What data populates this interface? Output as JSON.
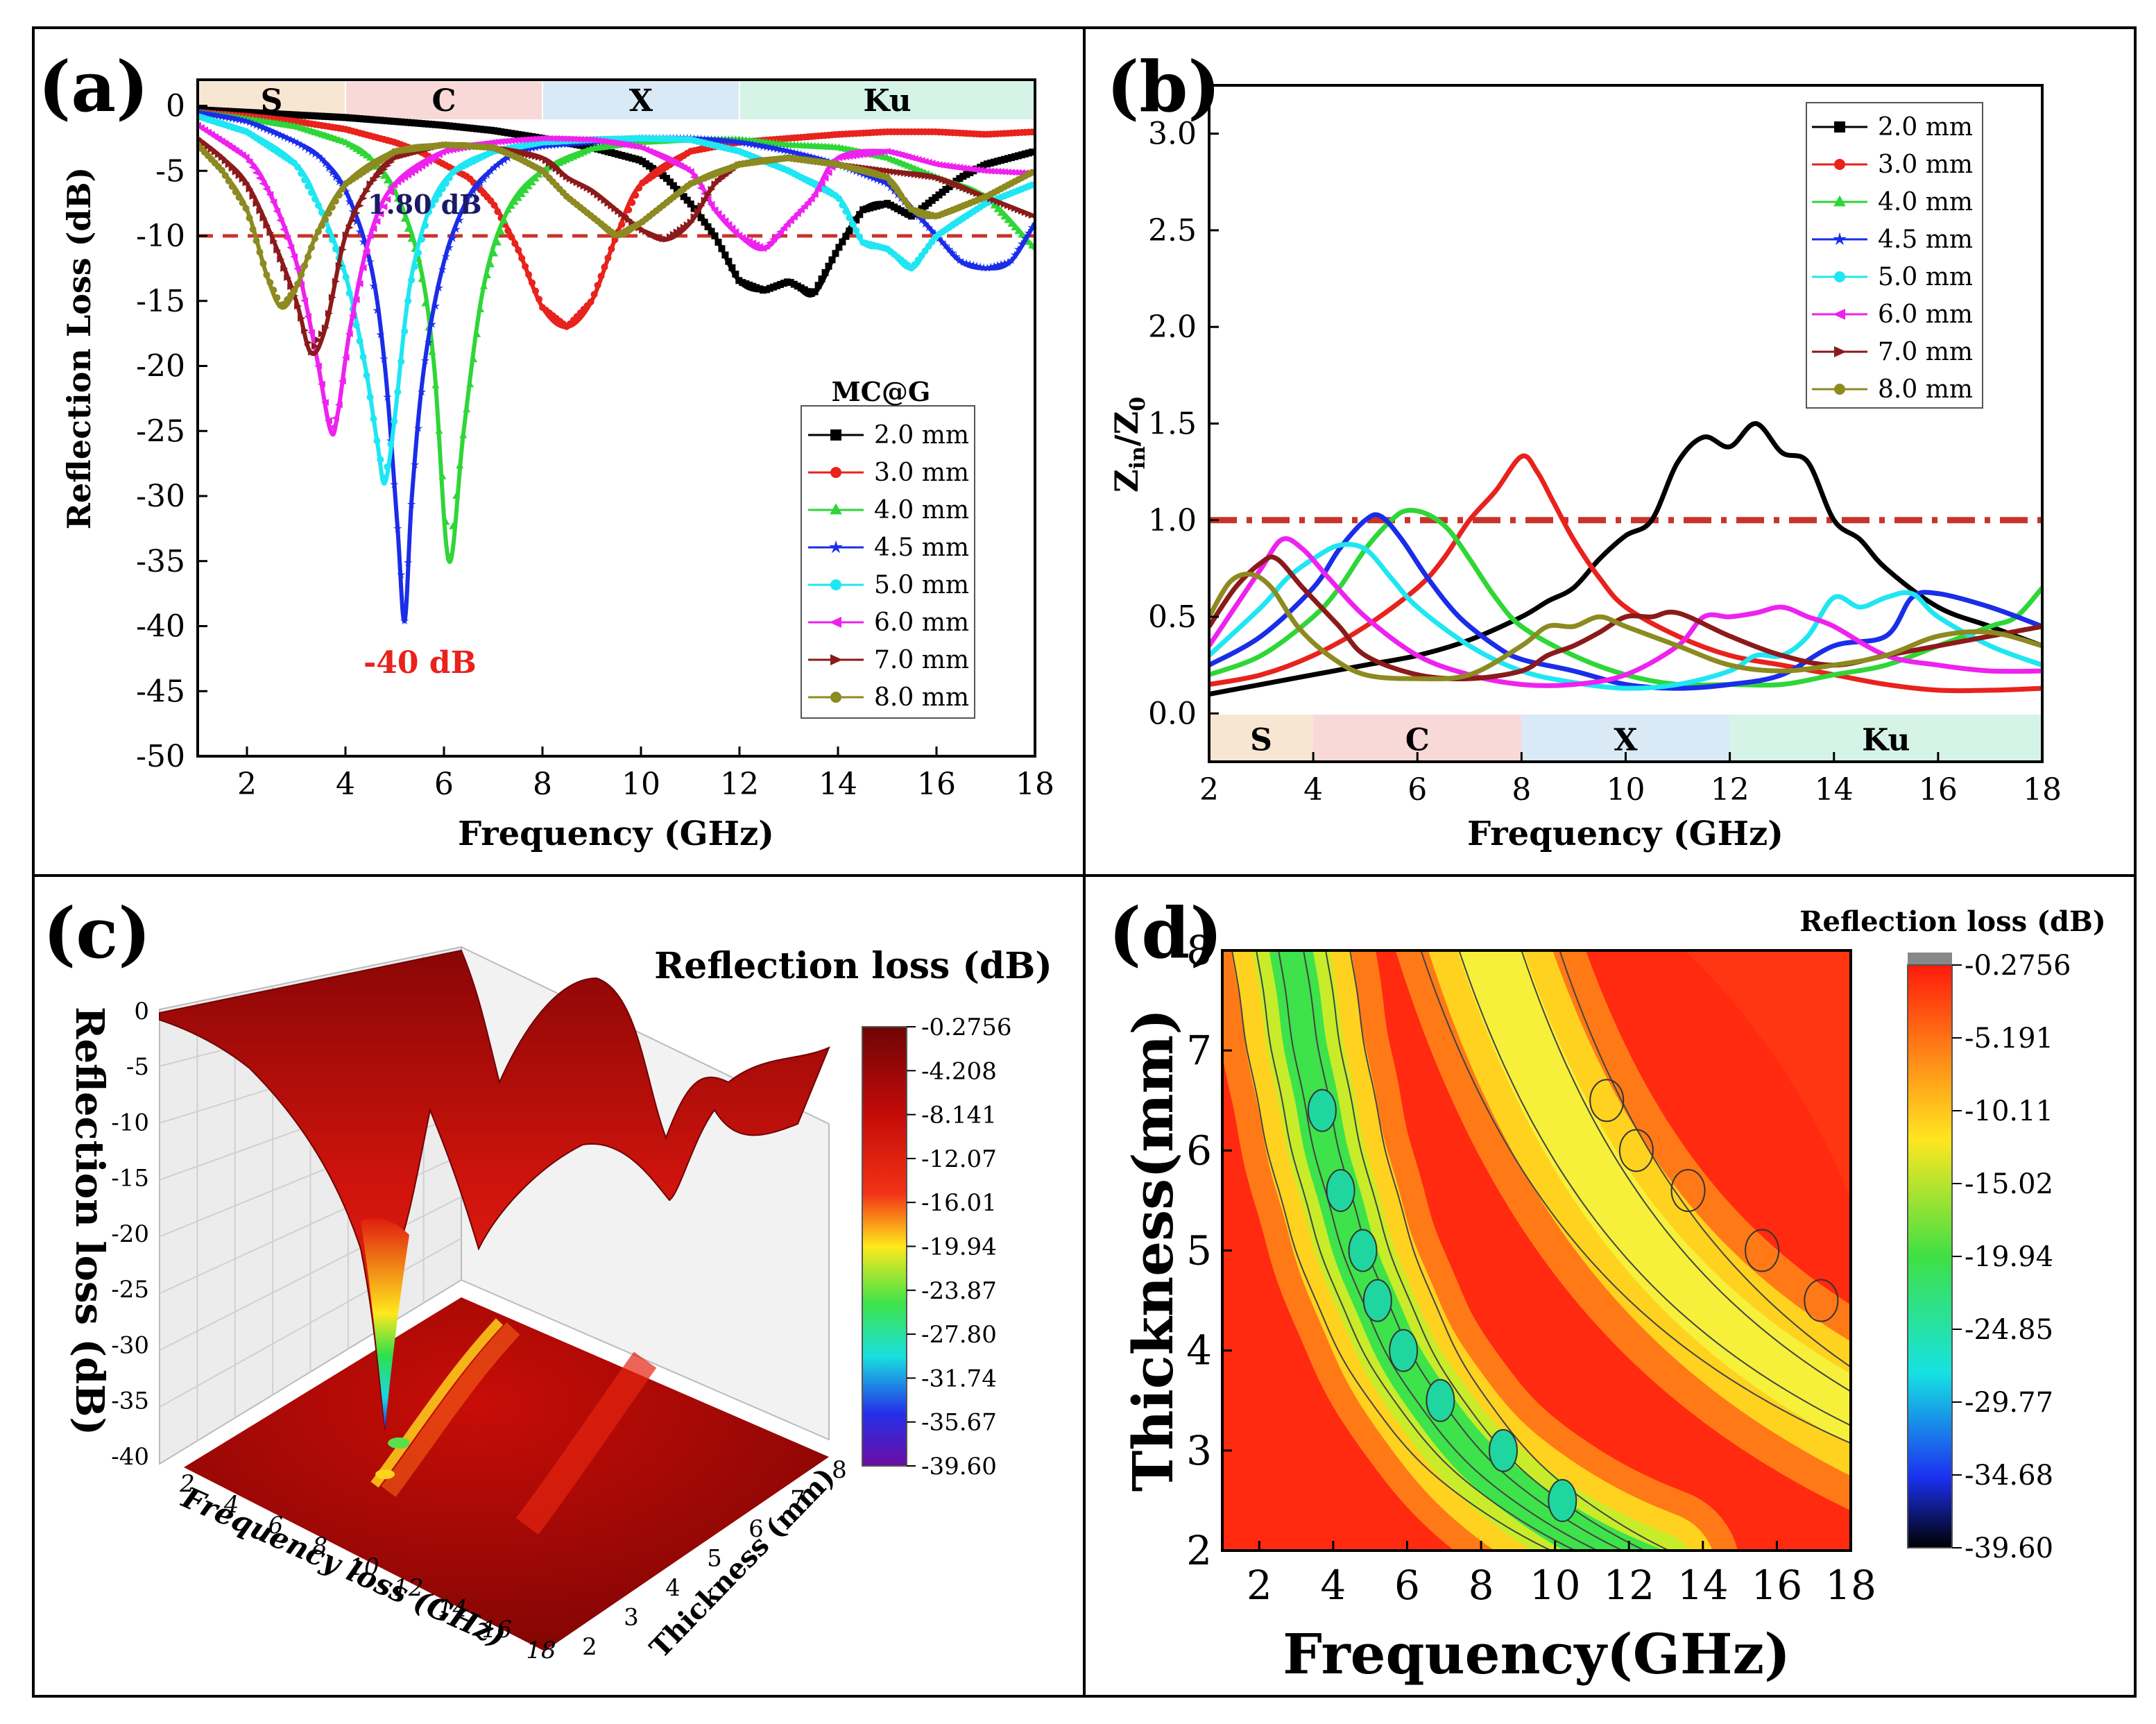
{
  "panels": {
    "a": {
      "letter": "(a)",
      "xlabel": "Frequency (GHz)",
      "ylabel": "Reflection Loss (dB)",
      "annotation_low": "1.80 dB",
      "annotation_min": "-40 dB",
      "legend_title": "MC@G"
    },
    "b": {
      "letter": "(b)",
      "xlabel": "Frequency (GHz)",
      "ylabel_main": "Z",
      "ylabel_sub1": "in",
      "ylabel_slash": "/Z",
      "ylabel_sub2": "0"
    },
    "c": {
      "letter": "(c)",
      "title": "Reflection loss (dB)",
      "zlabel": "Reflection loss (dB)",
      "xlabel": "Frequency loss (GHz)",
      "ylabel": "Thickness (mm)"
    },
    "d": {
      "letter": "(d)",
      "title": "Reflection loss (dB)",
      "xlabel": "Frequency(GHz)",
      "ylabel": "Thickness(mm)"
    }
  },
  "bands": [
    {
      "name": "S",
      "from": 1,
      "to": 4,
      "color": "#f7e5cf"
    },
    {
      "name": "C",
      "from": 4,
      "to": 8,
      "color": "#f9d7d5"
    },
    {
      "name": "X",
      "from": 8,
      "to": 12,
      "color": "#d7e9f6"
    },
    {
      "name": "Ku",
      "from": 12,
      "to": 18,
      "color": "#d3f3e6"
    }
  ],
  "colors": {
    "s20": "#000000",
    "s30": "#e8221c",
    "s40": "#2fd637",
    "s45": "#1a2de8",
    "s50": "#1fe6f2",
    "s60": "#ee22ee",
    "s70": "#8b1a1a",
    "s80": "#8c8a20",
    "reference": "#c8342b"
  },
  "chart_data": [
    {
      "id": "a",
      "type": "line",
      "title": "",
      "xlabel": "Frequency (GHz)",
      "ylabel": "Reflection Loss (dB)",
      "xlim": [
        1,
        18
      ],
      "ylim": [
        -50,
        2
      ],
      "xticks": [
        2,
        4,
        6,
        8,
        10,
        12,
        14,
        16,
        18
      ],
      "yticks": [
        0,
        -5,
        -10,
        -15,
        -20,
        -25,
        -30,
        -35,
        -40,
        -45,
        -50
      ],
      "reference_line": -10,
      "series": [
        {
          "name": "2.0 mm",
          "color": "#000000",
          "x": [
            1,
            2,
            3,
            4,
            5,
            6,
            7,
            8,
            9,
            10,
            10.5,
            11,
            11.5,
            12,
            12.5,
            13,
            13.5,
            14,
            14.5,
            15,
            15.5,
            16,
            16.5,
            17,
            17.5,
            18
          ],
          "y": [
            -0.3,
            -0.5,
            -0.7,
            -0.9,
            -1.2,
            -1.5,
            -1.9,
            -2.5,
            -3.2,
            -4.2,
            -5.5,
            -7.5,
            -10,
            -13.5,
            -14.2,
            -13.5,
            -14.5,
            -11,
            -8,
            -7.5,
            -8.5,
            -7,
            -5.5,
            -4.5,
            -4,
            -3.5
          ]
        },
        {
          "name": "3.0 mm",
          "color": "#e8221c",
          "x": [
            1,
            2,
            3,
            4,
            5,
            5.5,
            6,
            6.5,
            7,
            7.5,
            8,
            8.5,
            9,
            9.5,
            10,
            11,
            12,
            13,
            14,
            15,
            16,
            17,
            18
          ],
          "y": [
            -0.5,
            -0.8,
            -1.2,
            -1.8,
            -2.8,
            -3.5,
            -4.5,
            -5.5,
            -7.5,
            -11,
            -15.5,
            -17,
            -15,
            -10,
            -6,
            -3.5,
            -2.8,
            -2.5,
            -2.2,
            -2,
            -2,
            -2.2,
            -2
          ]
        },
        {
          "name": "4.0 mm",
          "color": "#2fd637",
          "x": [
            1,
            2,
            3,
            4,
            4.5,
            5,
            5.5,
            5.8,
            6.1,
            6.4,
            6.8,
            7.3,
            8,
            9,
            10,
            11,
            12,
            13,
            14,
            15,
            16,
            17,
            18
          ],
          "y": [
            -0.5,
            -1,
            -1.6,
            -2.8,
            -4,
            -6.5,
            -12,
            -20,
            -35,
            -25,
            -14,
            -8,
            -5,
            -3.3,
            -2.8,
            -2.6,
            -2.6,
            -3,
            -3.2,
            -4,
            -5.5,
            -7,
            -11
          ]
        },
        {
          "name": "4.5 mm",
          "color": "#1a2de8",
          "x": [
            1,
            2,
            3,
            3.5,
            4,
            4.5,
            4.8,
            5.05,
            5.2,
            5.35,
            5.6,
            6,
            6.5,
            7,
            7.5,
            8,
            9,
            10,
            11,
            12,
            13,
            14,
            15,
            16,
            16.5,
            17,
            17.5,
            18
          ],
          "y": [
            -0.5,
            -1.2,
            -2.8,
            -4,
            -6.5,
            -12,
            -20,
            -32,
            -39.6,
            -30,
            -20,
            -12,
            -7,
            -4.8,
            -3.5,
            -3.1,
            -2.8,
            -2.5,
            -2.5,
            -2.8,
            -3.5,
            -4.5,
            -6,
            -10,
            -12,
            -12.5,
            -12,
            -9
          ]
        },
        {
          "name": "5.0 mm",
          "color": "#1fe6f2",
          "x": [
            1,
            2,
            3,
            3.5,
            4,
            4.4,
            4.65,
            4.8,
            5,
            5.3,
            5.7,
            6.2,
            7,
            8,
            9,
            10,
            11,
            12,
            13,
            14,
            14.5,
            15,
            15.5,
            16,
            17,
            18
          ],
          "y": [
            -0.8,
            -2,
            -4.5,
            -8,
            -13,
            -20,
            -26,
            -29,
            -24,
            -14,
            -8,
            -5,
            -3.5,
            -2.8,
            -2.6,
            -2.5,
            -2.6,
            -3.5,
            -5,
            -7,
            -10.5,
            -11,
            -12.5,
            -10,
            -7.5,
            -6
          ]
        },
        {
          "name": "6.0 mm",
          "color": "#ee22ee",
          "x": [
            1,
            2,
            2.5,
            3,
            3.4,
            3.7,
            3.85,
            4.1,
            4.5,
            5,
            6,
            7,
            8,
            9,
            10,
            11,
            11.5,
            12,
            12.5,
            13,
            13.5,
            14,
            15,
            16,
            17,
            18
          ],
          "y": [
            -1.5,
            -4,
            -7,
            -12,
            -19,
            -25,
            -23.5,
            -17,
            -10,
            -6,
            -3.5,
            -2.8,
            -2.5,
            -2.6,
            -3.2,
            -5,
            -8,
            -10,
            -11,
            -9,
            -7,
            -4,
            -3.5,
            -4.5,
            -5,
            -5.2
          ]
        },
        {
          "name": "7.0 mm",
          "color": "#8b1a1a",
          "x": [
            1,
            1.5,
            2,
            2.5,
            3,
            3.3,
            3.6,
            4,
            4.5,
            5,
            6,
            7,
            8,
            8.5,
            9,
            9.5,
            10,
            10.5,
            11,
            11.5,
            12,
            13,
            14,
            15,
            16,
            17,
            18
          ],
          "y": [
            -2.5,
            -4,
            -6,
            -10,
            -15,
            -19,
            -17,
            -10,
            -6,
            -4,
            -3,
            -3.2,
            -4,
            -5.5,
            -6.5,
            -8,
            -9.5,
            -10.3,
            -9,
            -6,
            -4.5,
            -4,
            -4.5,
            -5,
            -5.5,
            -7,
            -8.5
          ]
        },
        {
          "name": "8.0 mm",
          "color": "#8c8a20",
          "x": [
            1,
            1.5,
            2,
            2.4,
            2.7,
            3,
            3.4,
            4,
            5,
            6,
            7,
            7.5,
            8,
            8.5,
            9,
            9.5,
            10,
            11,
            12,
            13,
            14,
            15,
            15.5,
            16,
            17,
            18
          ],
          "y": [
            -3,
            -5,
            -8,
            -13,
            -15.5,
            -14,
            -10,
            -6,
            -3.5,
            -3,
            -3.2,
            -4,
            -5,
            -7,
            -8.5,
            -10,
            -9,
            -6,
            -4.5,
            -4,
            -4.5,
            -5.5,
            -8,
            -8.5,
            -7,
            -5
          ]
        }
      ]
    },
    {
      "id": "b",
      "type": "line",
      "title": "",
      "xlabel": "Frequency (GHz)",
      "ylabel": "Zin/Z0",
      "xlim": [
        2,
        18
      ],
      "ylim": [
        -0.25,
        3.25
      ],
      "xticks": [
        2,
        4,
        6,
        8,
        10,
        12,
        14,
        16,
        18
      ],
      "yticks": [
        0.0,
        0.5,
        1.0,
        1.5,
        2.0,
        2.5,
        3.0
      ],
      "reference_line": 1.0,
      "series": [
        {
          "name": "2.0 mm",
          "color": "#000000",
          "x": [
            2,
            3,
            4,
            5,
            6,
            7,
            8,
            8.5,
            9,
            9.5,
            10,
            10.5,
            11,
            11.5,
            12,
            12.5,
            13,
            13.5,
            14,
            14.5,
            15,
            16,
            17,
            18
          ],
          "y": [
            0.1,
            0.15,
            0.2,
            0.25,
            0.3,
            0.38,
            0.5,
            0.58,
            0.65,
            0.8,
            0.92,
            1.0,
            1.3,
            1.43,
            1.38,
            1.5,
            1.35,
            1.3,
            1.0,
            0.9,
            0.75,
            0.55,
            0.45,
            0.35
          ]
        },
        {
          "name": "3.0 mm",
          "color": "#e8221c",
          "x": [
            2,
            3,
            4,
            5,
            6,
            6.5,
            7,
            7.5,
            8,
            8.3,
            8.6,
            9,
            9.5,
            10,
            11,
            12,
            13,
            14,
            15,
            16,
            17,
            18
          ],
          "y": [
            0.15,
            0.2,
            0.3,
            0.45,
            0.65,
            0.8,
            1.0,
            1.15,
            1.33,
            1.25,
            1.1,
            0.9,
            0.7,
            0.55,
            0.4,
            0.3,
            0.25,
            0.2,
            0.15,
            0.12,
            0.12,
            0.13
          ]
        },
        {
          "name": "4.0 mm",
          "color": "#2fd637",
          "x": [
            2,
            3,
            4,
            4.5,
            5,
            5.5,
            5.8,
            6.2,
            6.6,
            7,
            7.5,
            8,
            9,
            10,
            11,
            12,
            13,
            14,
            15,
            16,
            17,
            17.5,
            18
          ],
          "y": [
            0.2,
            0.3,
            0.5,
            0.65,
            0.85,
            1.0,
            1.05,
            1.03,
            0.95,
            0.8,
            0.6,
            0.45,
            0.3,
            0.2,
            0.15,
            0.15,
            0.15,
            0.2,
            0.25,
            0.35,
            0.45,
            0.5,
            0.65
          ]
        },
        {
          "name": "4.5 mm",
          "color": "#1a2de8",
          "x": [
            2,
            3,
            4,
            4.5,
            5,
            5.3,
            5.7,
            6.2,
            6.8,
            7.5,
            8,
            9,
            10,
            11,
            12,
            13,
            14,
            15,
            15.5,
            16,
            17,
            18
          ],
          "y": [
            0.25,
            0.4,
            0.65,
            0.85,
            1.0,
            1.02,
            0.9,
            0.7,
            0.5,
            0.35,
            0.28,
            0.22,
            0.15,
            0.13,
            0.15,
            0.2,
            0.35,
            0.4,
            0.6,
            0.62,
            0.55,
            0.45
          ]
        },
        {
          "name": "5.0 mm",
          "color": "#1fe6f2",
          "x": [
            2,
            3,
            3.5,
            4,
            4.5,
            5,
            5.5,
            6,
            7,
            8,
            9,
            10,
            11,
            12,
            12.5,
            13,
            13.5,
            14,
            14.5,
            15,
            15.5,
            16,
            17,
            18
          ],
          "y": [
            0.3,
            0.55,
            0.7,
            0.8,
            0.87,
            0.85,
            0.7,
            0.55,
            0.35,
            0.22,
            0.16,
            0.13,
            0.15,
            0.22,
            0.3,
            0.3,
            0.4,
            0.6,
            0.55,
            0.6,
            0.62,
            0.5,
            0.35,
            0.25
          ]
        },
        {
          "name": "6.0 mm",
          "color": "#ee22ee",
          "x": [
            2,
            2.5,
            3,
            3.4,
            3.8,
            4.3,
            5,
            6,
            7,
            8,
            9,
            10,
            11,
            11.5,
            12,
            12.5,
            13,
            13.5,
            14,
            15,
            16,
            17,
            18
          ],
          "y": [
            0.35,
            0.55,
            0.75,
            0.9,
            0.85,
            0.7,
            0.5,
            0.3,
            0.2,
            0.15,
            0.15,
            0.2,
            0.35,
            0.5,
            0.5,
            0.52,
            0.55,
            0.5,
            0.45,
            0.3,
            0.25,
            0.22,
            0.22
          ]
        },
        {
          "name": "7.0 mm",
          "color": "#8b1a1a",
          "x": [
            2,
            2.5,
            3,
            3.3,
            3.8,
            4.5,
            5,
            6,
            7,
            8,
            8.5,
            9,
            9.5,
            10,
            10.5,
            11,
            12,
            13,
            14,
            15,
            16,
            17,
            18
          ],
          "y": [
            0.45,
            0.65,
            0.78,
            0.8,
            0.65,
            0.45,
            0.3,
            0.2,
            0.18,
            0.22,
            0.3,
            0.35,
            0.42,
            0.5,
            0.5,
            0.52,
            0.4,
            0.3,
            0.25,
            0.3,
            0.35,
            0.4,
            0.45
          ]
        },
        {
          "name": "8.0 mm",
          "color": "#8c8a20",
          "x": [
            2,
            2.4,
            2.8,
            3.2,
            3.7,
            4.3,
            5,
            6,
            7,
            8,
            8.5,
            9,
            9.5,
            10,
            11,
            12,
            13,
            14,
            15,
            16,
            17,
            18
          ],
          "y": [
            0.5,
            0.68,
            0.72,
            0.65,
            0.45,
            0.3,
            0.2,
            0.18,
            0.2,
            0.35,
            0.45,
            0.45,
            0.5,
            0.45,
            0.35,
            0.25,
            0.22,
            0.25,
            0.3,
            0.4,
            0.42,
            0.35
          ]
        }
      ]
    },
    {
      "id": "c",
      "type": "surface3d",
      "title": "Reflection loss (dB)",
      "xlabel": "Frequency loss (GHz)",
      "ylabel": "Thickness (mm)",
      "zlabel": "Reflection loss (dB)",
      "zticks": [
        "0",
        "-5",
        "-10",
        "-15",
        "-20",
        "-25",
        "-30",
        "-35",
        "-40"
      ],
      "xticks": [
        "2",
        "4",
        "6",
        "8",
        "10",
        "12",
        "14",
        "16",
        "18"
      ],
      "yticks": [
        "2",
        "3",
        "4",
        "5",
        "6",
        "7",
        "8"
      ],
      "colorbar_ticks": [
        "-0.2756",
        "-4.208",
        "-8.141",
        "-12.07",
        "-16.01",
        "-19.94",
        "-23.87",
        "-27.80",
        "-31.74",
        "-35.67",
        "-39.60"
      ]
    },
    {
      "id": "d",
      "type": "heatmap",
      "title": "Reflection loss (dB)",
      "xlabel": "Frequency(GHz)",
      "ylabel": "Thickness(mm)",
      "xlim": [
        1,
        18
      ],
      "ylim": [
        2,
        8
      ],
      "xticks": [
        "2",
        "4",
        "6",
        "8",
        "10",
        "12",
        "14",
        "16",
        "18"
      ],
      "yticks": [
        "2",
        "3",
        "4",
        "5",
        "6",
        "7",
        "8"
      ],
      "colorbar_ticks": [
        "-0.2756",
        "-5.191",
        "-10.11",
        "-15.02",
        "-19.94",
        "-24.85",
        "-29.77",
        "-34.68",
        "-39.60"
      ]
    }
  ]
}
